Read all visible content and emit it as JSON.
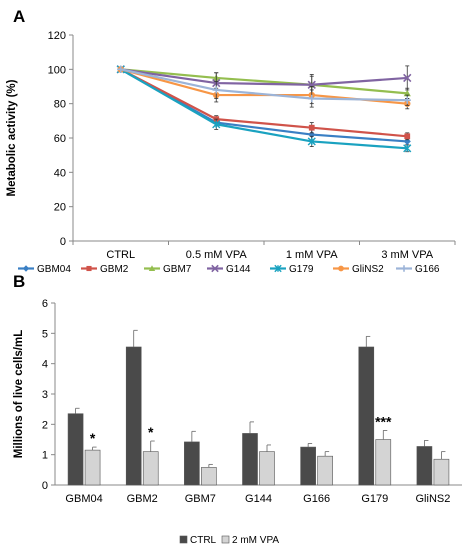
{
  "chart_data": [
    {
      "panel": "A",
      "type": "line",
      "ylabel": "Metabolic activity (%)",
      "xlabel": "",
      "categories": [
        "CTRL",
        "0.5 mM VPA",
        "1 mM VPA",
        "3 mM VPA"
      ],
      "ylim": [
        0,
        120
      ],
      "yticks": [
        0,
        20,
        40,
        60,
        80,
        100,
        120
      ],
      "grid": false,
      "legend": "bottom",
      "series": [
        {
          "name": "GBM04",
          "color": "#3a7fc4",
          "marker": "diamond",
          "values": [
            100,
            69,
            62,
            58
          ],
          "errors": [
            0,
            2,
            3,
            2
          ]
        },
        {
          "name": "GBM2",
          "color": "#d0534a",
          "marker": "square",
          "values": [
            100,
            71,
            66,
            61
          ],
          "errors": [
            0,
            2,
            3,
            2
          ]
        },
        {
          "name": "GBM7",
          "color": "#94be4f",
          "marker": "triangle",
          "values": [
            100,
            95,
            91,
            86
          ],
          "errors": [
            0,
            3,
            5,
            3
          ]
        },
        {
          "name": "G144",
          "color": "#8064a2",
          "marker": "x",
          "values": [
            100,
            92,
            91,
            95
          ],
          "errors": [
            0,
            6,
            6,
            7
          ]
        },
        {
          "name": "G179",
          "color": "#1aa2c0",
          "marker": "star",
          "values": [
            100,
            68,
            58,
            54
          ],
          "errors": [
            0,
            3,
            3,
            2
          ]
        },
        {
          "name": "GliNS2",
          "color": "#f79646",
          "marker": "circle",
          "values": [
            100,
            85,
            85,
            80
          ],
          "errors": [
            0,
            4,
            5,
            3
          ]
        },
        {
          "name": "G166",
          "color": "#9cb4d8",
          "marker": "plus",
          "values": [
            100,
            88,
            83,
            82
          ],
          "errors": [
            0,
            5,
            5,
            3
          ]
        }
      ]
    },
    {
      "panel": "B",
      "type": "bar",
      "ylabel": "Millions of live cells/mL",
      "xlabel": "",
      "categories": [
        "GBM04",
        "GBM2",
        "GBM7",
        "G144",
        "G166",
        "G179",
        "GliNS2"
      ],
      "ylim": [
        0,
        6
      ],
      "yticks": [
        0,
        1,
        2,
        3,
        4,
        5,
        6
      ],
      "grid": false,
      "legend": "bottom",
      "series": [
        {
          "name": "CTRL",
          "color": "#4a4a4a",
          "values": [
            2.35,
            4.55,
            1.42,
            1.7,
            1.25,
            4.55,
            1.27
          ],
          "errors": [
            0.18,
            0.55,
            0.35,
            0.38,
            0.12,
            0.35,
            0.2
          ]
        },
        {
          "name": "2 mM VPA",
          "color": "#d4d4d4",
          "values": [
            1.15,
            1.1,
            0.58,
            1.1,
            0.95,
            1.5,
            0.85
          ],
          "errors": [
            0.1,
            0.35,
            0.1,
            0.22,
            0.15,
            0.3,
            0.25
          ]
        }
      ],
      "annotations": [
        {
          "category": "GBM04",
          "text": "*"
        },
        {
          "category": "GBM2",
          "text": "*"
        },
        {
          "category": "G179",
          "text": "***"
        }
      ]
    }
  ]
}
